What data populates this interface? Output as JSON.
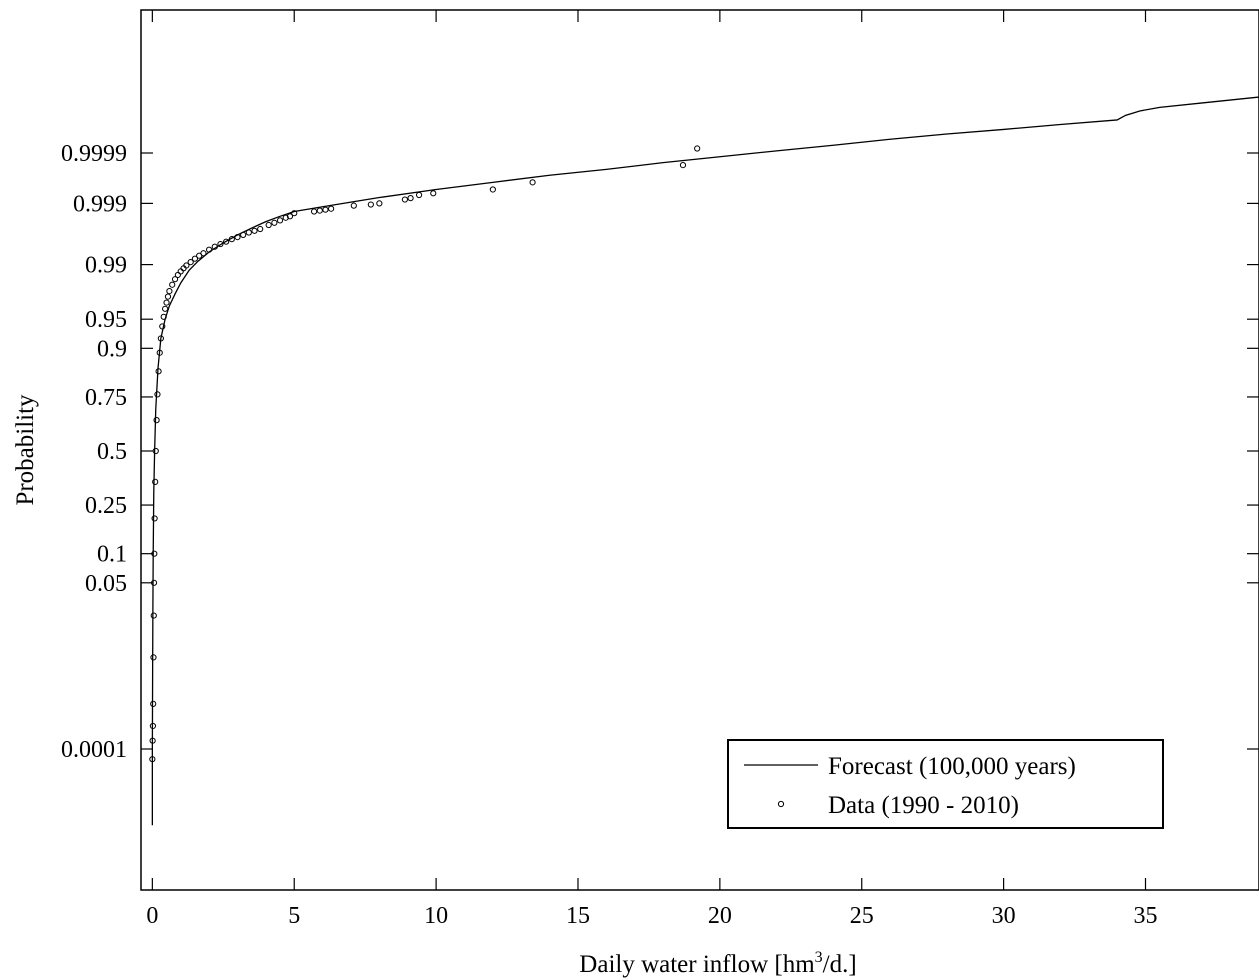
{
  "chart_data": {
    "type": "line",
    "title": "",
    "xlabel": "Daily water inflow [hm",
    "xlabel_sup": "3",
    "xlabel_suffix": "/d.]",
    "ylabel": "Probability",
    "xlim": [
      -0.4,
      39
    ],
    "ylim_scale": "normal-probability",
    "x_ticks": [
      0,
      5,
      10,
      15,
      20,
      25,
      30,
      35
    ],
    "x_tick_labels": [
      "0",
      "5",
      "10",
      "15",
      "20",
      "25",
      "30",
      "35"
    ],
    "y_ticks": [
      0.0001,
      0.05,
      0.1,
      0.25,
      0.5,
      0.75,
      0.9,
      0.95,
      0.99,
      0.999,
      0.9999
    ],
    "y_tick_labels": [
      "0.0001",
      "0.05",
      "0.1",
      "0.25",
      "0.5",
      "0.75",
      "0.9",
      "0.95",
      "0.99",
      "0.999",
      "0.9999"
    ],
    "grid": false,
    "legend": {
      "placement": "bottom-right",
      "entries": [
        "Forecast (100,000 years)",
        "Data (1990 - 2010)"
      ]
    },
    "series": [
      {
        "name": "Forecast (100,000 years)",
        "style": "line",
        "x": [
          0,
          0,
          0.01,
          0.02,
          0.03,
          0.05,
          0.08,
          0.12,
          0.2,
          0.3,
          0.45,
          0.6,
          0.8,
          1.0,
          1.3,
          1.6,
          2.0,
          2.5,
          3.0,
          3.5,
          4.0,
          4.5,
          5.0,
          6.0,
          8.0,
          10.0,
          12.0,
          14.0,
          16.0,
          18.0,
          20.0,
          22.0,
          24.0,
          26.0,
          28.0,
          30.0,
          32.0,
          34.0,
          34.3,
          34.8,
          35.5,
          37.0,
          39.0
        ],
        "y": [
          1.5e-06,
          0.0001,
          0.003,
          0.03,
          0.1,
          0.3,
          0.5,
          0.7,
          0.85,
          0.92,
          0.95,
          0.965,
          0.975,
          0.982,
          0.988,
          0.991,
          0.9935,
          0.9953,
          0.9965,
          0.9973,
          0.9979,
          0.9983,
          0.9986,
          0.99885,
          0.99922,
          0.99945,
          0.9996,
          0.99971,
          0.99978,
          0.99984,
          0.99988,
          0.99991,
          0.999932,
          0.99995,
          0.999962,
          0.99997,
          0.999977,
          0.999982,
          0.999986,
          0.999989,
          0.999991,
          0.999993,
          0.999995
        ]
      },
      {
        "name": "Data (1990 - 2010)",
        "style": "markers",
        "x": [
          0,
          0.01,
          0.02,
          0.03,
          0.04,
          0.05,
          0.06,
          0.07,
          0.08,
          0.1,
          0.12,
          0.15,
          0.18,
          0.22,
          0.26,
          0.3,
          0.35,
          0.4,
          0.45,
          0.5,
          0.55,
          0.6,
          0.7,
          0.8,
          0.9,
          1.0,
          1.1,
          1.2,
          1.35,
          1.5,
          1.65,
          1.8,
          2.0,
          2.2,
          2.4,
          2.6,
          2.8,
          3.0,
          3.2,
          3.4,
          3.6,
          3.8,
          4.1,
          4.3,
          4.5,
          4.7,
          4.85,
          5.0,
          5.7,
          5.9,
          6.1,
          6.3,
          7.1,
          7.7,
          8.0,
          8.9,
          9.1,
          9.4,
          9.9,
          12.0,
          13.4,
          18.7,
          19.2
        ],
        "y": [
          6e-05,
          0.00015,
          0.0003,
          0.0008,
          0.005,
          0.02,
          0.05,
          0.1,
          0.2,
          0.35,
          0.5,
          0.65,
          0.76,
          0.84,
          0.89,
          0.92,
          0.94,
          0.953,
          0.962,
          0.968,
          0.973,
          0.977,
          0.981,
          0.984,
          0.986,
          0.9875,
          0.9887,
          0.9897,
          0.9908,
          0.9918,
          0.9926,
          0.9932,
          0.994,
          0.9946,
          0.9951,
          0.9955,
          0.9959,
          0.9962,
          0.9965,
          0.9968,
          0.997,
          0.9972,
          0.9976,
          0.9978,
          0.998,
          0.9982,
          0.9983,
          0.9985,
          0.9986,
          0.99865,
          0.9987,
          0.99875,
          0.9989,
          0.99895,
          0.999,
          0.99915,
          0.9992,
          0.9993,
          0.99935,
          0.99945,
          0.9996,
          0.99982,
          0.99992
        ]
      }
    ]
  }
}
